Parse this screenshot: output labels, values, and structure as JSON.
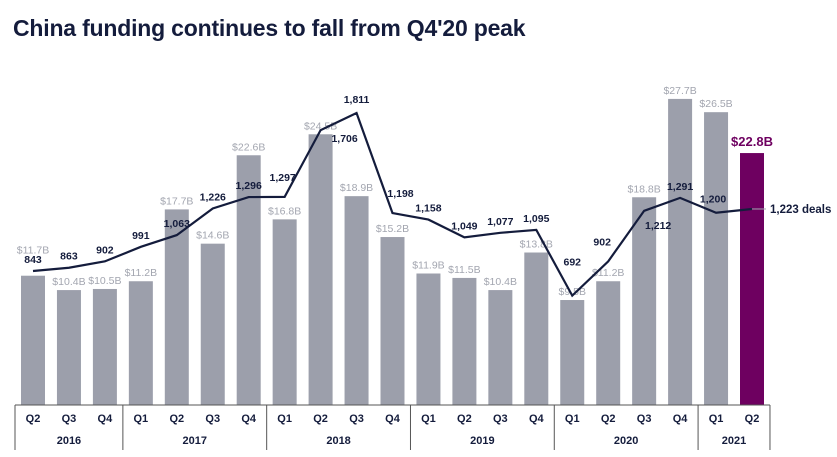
{
  "chart_data": {
    "type": "bar+line",
    "title": "China funding continues to fall from Q4'20 peak",
    "categories": [
      "Q2",
      "Q3",
      "Q4",
      "Q1",
      "Q2",
      "Q3",
      "Q4",
      "Q1",
      "Q2",
      "Q3",
      "Q4",
      "Q1",
      "Q2",
      "Q3",
      "Q4",
      "Q1",
      "Q2",
      "Q3",
      "Q4",
      "Q1",
      "Q2"
    ],
    "years": [
      {
        "label": "2016",
        "count": 3
      },
      {
        "label": "2017",
        "count": 4
      },
      {
        "label": "2018",
        "count": 4
      },
      {
        "label": "2019",
        "count": 4
      },
      {
        "label": "2020",
        "count": 4
      },
      {
        "label": "2021",
        "count": 2
      }
    ],
    "series": [
      {
        "type": "bar",
        "unit": "$B",
        "values": [
          11.7,
          10.4,
          10.5,
          11.2,
          17.7,
          14.6,
          22.6,
          16.8,
          24.5,
          18.9,
          15.2,
          11.9,
          11.5,
          10.4,
          13.8,
          9.5,
          11.2,
          18.8,
          27.7,
          26.5,
          22.8
        ],
        "labels": [
          "$11.7B",
          "$10.4B",
          "$10.5B",
          "$11.2B",
          "$17.7B",
          "$14.6B",
          "$22.6B",
          "$16.8B",
          "$24.5B",
          "$18.9B",
          "$15.2B",
          "$11.9B",
          "$11.5B",
          "$10.4B",
          "$13.8B",
          "$9.5B",
          "$11.2B",
          "$18.8B",
          "$27.7B",
          "$26.5B",
          "$22.8B"
        ]
      },
      {
        "type": "line",
        "unit": "deals",
        "values": [
          843,
          863,
          902,
          991,
          1063,
          1226,
          1296,
          1297,
          1706,
          1811,
          1198,
          1158,
          1049,
          1077,
          1095,
          692,
          902,
          1212,
          1291,
          1200,
          1223
        ],
        "labels": [
          "843",
          "863",
          "902",
          "991",
          "1,063",
          "1,226",
          "1,296",
          "1,297",
          "1,706",
          "1,811",
          "1,198",
          "1,158",
          "1,049",
          "1,077",
          "1,095",
          "692",
          "902",
          "1,212",
          "1,291",
          "1,200",
          "1,223 deals"
        ]
      }
    ],
    "colors": {
      "bar": "#9c9fab",
      "highlight_bar": "#6e0060",
      "line": "#141c3c",
      "bar_label": "#a3a6b0"
    },
    "grid": false,
    "legend": "none"
  }
}
